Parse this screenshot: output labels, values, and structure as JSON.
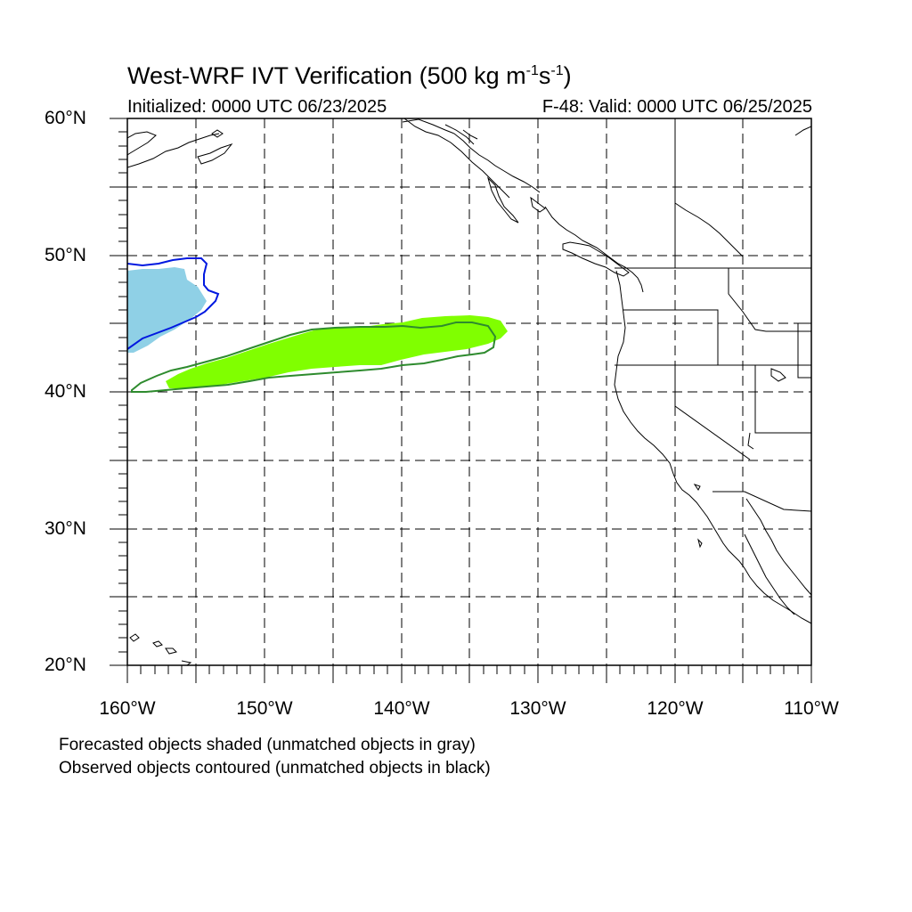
{
  "title": {
    "main": "West-WRF IVT Verification (500 kg m",
    "sup1": "-1",
    "mid": "s",
    "sup2": "-1",
    "end": ")"
  },
  "initialized": "Initialized: 0000 UTC 06/23/2025",
  "valid": "F-48: Valid: 0000 UTC 06/25/2025",
  "lat_labels": [
    "60°N",
    "50°N",
    "40°N",
    "30°N",
    "20°N"
  ],
  "lon_labels": [
    "160°W",
    "150°W",
    "140°W",
    "130°W",
    "120°W",
    "110°W"
  ],
  "footnotes": [
    "Forecasted objects shaded (unmatched objects in gray)",
    "Observed objects contoured (unmatched objects in black)"
  ],
  "map_extent": {
    "lon_min": -160,
    "lon_max": -110,
    "lat_min": 20,
    "lat_max": 60
  },
  "gridline_interval_deg": 5,
  "colors": {
    "forecast_object_1": "#8fd0e6",
    "observed_object_1": "#0018e0",
    "forecast_object_2": "#80ff00",
    "observed_object_2": "#2e8b2e",
    "coastlines": "#000000",
    "gridlines": "#000000"
  }
}
